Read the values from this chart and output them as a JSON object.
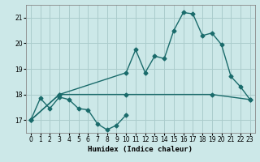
{
  "xlabel": "Humidex (Indice chaleur)",
  "bg_color": "#cce8e8",
  "grid_color": "#aacccc",
  "line_color": "#1a6b6b",
  "xlim": [
    -0.5,
    23.5
  ],
  "ylim": [
    16.5,
    21.5
  ],
  "yticks": [
    17,
    18,
    19,
    20,
    21
  ],
  "xticks": [
    0,
    1,
    2,
    3,
    4,
    5,
    6,
    7,
    8,
    9,
    10,
    11,
    12,
    13,
    14,
    15,
    16,
    17,
    18,
    19,
    20,
    21,
    22,
    23
  ],
  "line1_x": [
    0,
    1,
    2,
    3,
    4,
    5,
    6,
    7,
    8,
    9,
    10
  ],
  "line1_y": [
    17.0,
    17.85,
    17.45,
    17.9,
    17.8,
    17.45,
    17.4,
    16.85,
    16.62,
    16.8,
    17.2
  ],
  "line2_x": [
    0,
    3,
    10,
    11,
    12,
    13,
    14,
    15,
    16,
    17,
    18,
    19,
    20,
    21,
    22,
    23
  ],
  "line2_y": [
    17.0,
    18.0,
    18.85,
    19.75,
    18.85,
    19.5,
    19.4,
    20.5,
    21.2,
    21.15,
    20.3,
    20.4,
    19.95,
    18.7,
    18.3,
    17.8
  ],
  "line3_x": [
    0,
    3,
    10,
    19,
    23
  ],
  "line3_y": [
    17.0,
    18.0,
    18.0,
    18.0,
    17.8
  ],
  "marker": "D",
  "markersize": 2.5,
  "linewidth": 1.0,
  "tick_fontsize": 5.5,
  "xlabel_fontsize": 6.5
}
